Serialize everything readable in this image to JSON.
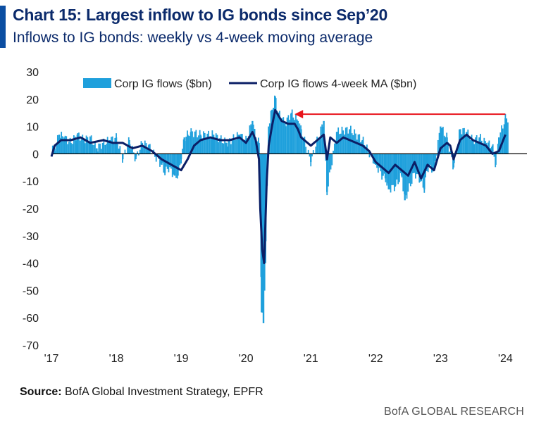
{
  "header": {
    "title": "Chart 15: Largest inflow to IG bonds since Sep’20",
    "subtitle": "Inflows to IG bonds: weekly vs 4-week moving average"
  },
  "colors": {
    "bars": "#1fa0dc",
    "ma_line": "#0b1f66",
    "arrow": "#e8141c",
    "zero_line": "#000000",
    "title": "#0b2a6b"
  },
  "chart_data": {
    "type": "bar",
    "title": "Chart 15: Largest inflow to IG bonds since Sep’20",
    "subtitle": "Inflows to IG bonds: weekly vs 4-week moving average",
    "xlabel": "",
    "ylabel": "",
    "ylim": [
      -70,
      30
    ],
    "yticks": [
      "30",
      "20",
      "10",
      "0",
      "-10",
      "-20",
      "-30",
      "-40",
      "-50",
      "-60",
      "-70"
    ],
    "xticks": [
      "'17",
      "'18",
      "'19",
      "'20",
      "'21",
      "'22",
      "'23",
      "'24"
    ],
    "x_range_years": [
      2017.0,
      2024.05
    ],
    "legend": {
      "placement": "top",
      "bars_label": "Corp IG flows ($bn)",
      "line_label": "Corp IG flows 4-week MA ($bn)"
    },
    "annotation": {
      "type": "arrow",
      "from_x": 2024.0,
      "to_x": 2020.75,
      "y": 14.5
    },
    "series": [
      {
        "name": "Corp IG flows ($bn)",
        "type": "bar",
        "x": [
          2017.05,
          2017.12,
          2017.2,
          2017.3,
          2017.4,
          2017.5,
          2017.6,
          2017.7,
          2017.8,
          2017.9,
          2018.0,
          2018.1,
          2018.2,
          2018.3,
          2018.4,
          2018.5,
          2018.6,
          2018.7,
          2018.75,
          2018.8,
          2018.9,
          2018.95,
          2019.0,
          2019.05,
          2019.1,
          2019.15,
          2019.3,
          2019.5,
          2019.7,
          2019.9,
          2020.0,
          2020.1,
          2020.15,
          2020.2,
          2020.24,
          2020.27,
          2020.3,
          2020.35,
          2020.4,
          2020.45,
          2020.5,
          2020.55,
          2020.6,
          2020.7,
          2020.8,
          2020.85,
          2021.0,
          2021.1,
          2021.2,
          2021.25,
          2021.4,
          2021.6,
          2021.8,
          2022.0,
          2022.1,
          2022.15,
          2022.2,
          2022.3,
          2022.4,
          2022.45,
          2022.6,
          2022.7,
          2022.75,
          2022.8,
          2022.9,
          2023.0,
          2023.1,
          2023.2,
          2023.3,
          2023.4,
          2023.5,
          2023.6,
          2023.7,
          2023.8,
          2023.85,
          2023.9,
          2024.0
        ],
        "values": [
          2,
          7,
          6,
          4,
          7,
          5,
          6,
          2,
          4,
          5,
          6,
          -2,
          5,
          -2,
          4,
          3,
          -1,
          -4,
          -7,
          -5,
          -8,
          -8,
          -2,
          6,
          7,
          8,
          7,
          7,
          4,
          7,
          5,
          12,
          6,
          4,
          -58,
          -62,
          -40,
          10,
          16,
          21,
          15,
          13,
          11,
          15,
          12,
          9,
          -3,
          5,
          12,
          -14,
          8,
          9,
          5,
          -4,
          -8,
          -9,
          -13,
          -12,
          -8,
          -17,
          -7,
          -10,
          -13,
          -5,
          -6,
          10,
          6,
          -5,
          9,
          8,
          5,
          6,
          4,
          3,
          -4,
          6,
          13
        ]
      },
      {
        "name": "Corp IG flows 4-week MA ($bn)",
        "type": "line",
        "x": [
          2017.0,
          2017.05,
          2017.15,
          2017.3,
          2017.45,
          2017.6,
          2017.8,
          2017.95,
          2018.1,
          2018.25,
          2018.4,
          2018.55,
          2018.7,
          2018.85,
          2019.0,
          2019.1,
          2019.2,
          2019.3,
          2019.45,
          2019.6,
          2019.75,
          2019.9,
          2020.0,
          2020.1,
          2020.15,
          2020.2,
          2020.22,
          2020.25,
          2020.28,
          2020.3,
          2020.32,
          2020.35,
          2020.4,
          2020.45,
          2020.5,
          2020.55,
          2020.65,
          2020.75,
          2020.8,
          2020.85,
          2021.0,
          2021.1,
          2021.2,
          2021.25,
          2021.3,
          2021.4,
          2021.5,
          2021.6,
          2021.7,
          2021.8,
          2021.9,
          2022.0,
          2022.1,
          2022.2,
          2022.3,
          2022.4,
          2022.5,
          2022.6,
          2022.7,
          2022.8,
          2022.9,
          2023.0,
          2023.1,
          2023.15,
          2023.2,
          2023.3,
          2023.4,
          2023.5,
          2023.6,
          2023.7,
          2023.8,
          2023.9,
          2024.0
        ],
        "values": [
          -1,
          3,
          5,
          5,
          6,
          4,
          5,
          4,
          4,
          2,
          3,
          1,
          -2,
          -4,
          -6,
          -2,
          3,
          5,
          6,
          5,
          5,
          6,
          4,
          8,
          5,
          -2,
          -20,
          -35,
          -40,
          -25,
          -10,
          3,
          10,
          16,
          14,
          12,
          11,
          11,
          9,
          6,
          3,
          5,
          7,
          -2,
          6,
          4,
          6,
          5,
          4,
          3,
          1,
          -3,
          -5,
          -7,
          -4,
          -6,
          -8,
          -3,
          -9,
          -4,
          -6,
          2,
          4,
          3,
          -2,
          5,
          7,
          5,
          4,
          3,
          0,
          1,
          7
        ]
      }
    ]
  },
  "footer": {
    "source_label": "Source:",
    "source_text": "BofA Global Investment Strategy, EPFR",
    "brand": "BofA GLOBAL RESEARCH"
  }
}
